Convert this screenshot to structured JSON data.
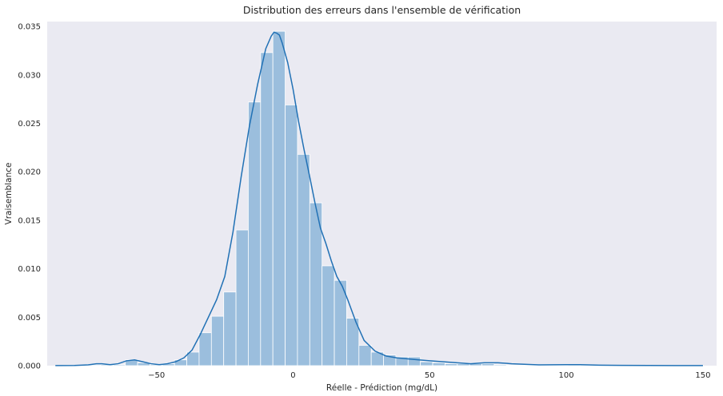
{
  "chart_data": {
    "type": "bar",
    "title": "Distribution des erreurs dans l'ensemble de vérification",
    "xlabel": "Réelle - Prédiction (mg/dL)",
    "ylabel": "Vraisemblance",
    "xlim": [
      -90,
      155
    ],
    "ylim": [
      0,
      0.0355
    ],
    "xticks": [
      -50,
      0,
      50,
      100,
      150
    ],
    "xtick_labels": [
      "−50",
      "0",
      "50",
      "100",
      "150"
    ],
    "yticks": [
      0.0,
      0.005,
      0.01,
      0.015,
      0.02,
      0.025,
      0.03,
      0.035
    ],
    "ytick_labels": [
      "0.000",
      "0.005",
      "0.010",
      "0.015",
      "0.020",
      "0.025",
      "0.030",
      "0.035"
    ],
    "grid": false,
    "colors": {
      "background": "#eaeaf2",
      "bar_fill": "#9bbedd",
      "bar_edge": "#ffffff",
      "kde_line": "#2171b5"
    },
    "histogram": {
      "bin_starts": [
        -83.9,
        -79.4,
        -74.9,
        -70.4,
        -65.9,
        -61.4,
        -56.9,
        -52.4,
        -47.9,
        -43.4,
        -38.9,
        -34.4,
        -29.9,
        -25.4,
        -20.9,
        -16.4,
        -11.9,
        -7.4,
        -2.9,
        1.6,
        6.1,
        10.6,
        15.1,
        19.6,
        24.1,
        28.6,
        33.1,
        37.6,
        42.1,
        46.6,
        51.1,
        55.6,
        60.1,
        64.6,
        69.1,
        73.6,
        78.1,
        82.6,
        87.1,
        91.6,
        96.1,
        100.6,
        105.1,
        109.6,
        114.1,
        118.6,
        123.1,
        127.6,
        132.1,
        136.6,
        141.1,
        145.6
      ],
      "bin_width": 4.5,
      "values": [
        5e-05,
        5e-05,
        8e-05,
        0.0001,
        0.0001,
        0.0006,
        0.0003,
        0.0001,
        0.0002,
        0.0006,
        0.0014,
        0.0034,
        0.0051,
        0.0076,
        0.014,
        0.0272,
        0.0323,
        0.0345,
        0.0269,
        0.0218,
        0.0168,
        0.0103,
        0.0088,
        0.0049,
        0.0021,
        0.0014,
        0.0011,
        0.0009,
        0.0009,
        0.0004,
        0.0003,
        0.0002,
        0.0002,
        0.0002,
        0.0002,
        0.0001,
        5e-05,
        5e-05,
        5e-05,
        5e-05,
        5e-05,
        8e-05,
        0.0001,
        5e-05,
        5e-05,
        5e-05,
        5e-05,
        5e-05,
        5e-05,
        5e-05,
        5e-05,
        5e-05
      ]
    },
    "kde": {
      "x": [
        -87,
        -80,
        -75,
        -72,
        -70,
        -67,
        -64,
        -61,
        -58,
        -55,
        -52,
        -49,
        -46,
        -43,
        -40,
        -37,
        -34,
        -31,
        -28,
        -25,
        -22,
        -19,
        -16,
        -13,
        -10,
        -8,
        -7,
        -6,
        -5,
        -4,
        -2,
        0,
        2,
        4,
        6,
        8,
        10,
        12,
        14,
        16,
        18,
        20,
        23,
        26,
        30,
        34,
        38,
        42,
        46,
        50,
        55,
        60,
        65,
        70,
        75,
        80,
        90,
        100,
        105,
        108,
        112,
        120,
        130,
        140,
        150
      ],
      "y": [
        1e-05,
        2e-05,
        8e-05,
        0.0002,
        0.0002,
        0.0001,
        0.0002,
        0.0005,
        0.0006,
        0.0004,
        0.0002,
        0.0001,
        0.0002,
        0.0004,
        0.0008,
        0.0016,
        0.0032,
        0.005,
        0.0068,
        0.0092,
        0.0138,
        0.0195,
        0.0247,
        0.029,
        0.0327,
        0.034,
        0.0344,
        0.0343,
        0.0341,
        0.0333,
        0.0313,
        0.0285,
        0.0252,
        0.0223,
        0.0196,
        0.0168,
        0.0142,
        0.0126,
        0.0108,
        0.0092,
        0.0082,
        0.0068,
        0.0045,
        0.0026,
        0.0015,
        0.001,
        0.0008,
        0.0007,
        0.0006,
        0.0005,
        0.0004,
        0.0003,
        0.0002,
        0.0003,
        0.0003,
        0.0002,
        8e-05,
        0.0001,
        0.0001,
        8e-05,
        5e-05,
        3e-05,
        2e-05,
        1e-05,
        1e-05
      ]
    }
  }
}
